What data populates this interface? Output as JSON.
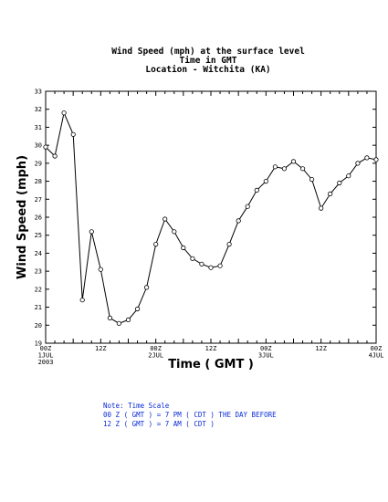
{
  "chart_data": {
    "type": "line",
    "title": [
      "Wind Speed (mph) at the surface level",
      "Time in GMT",
      "Location - Witchita (KA)"
    ],
    "xlabel": "Time ( GMT )",
    "ylabel": "Wind Speed (mph)",
    "ylim": [
      19,
      33
    ],
    "yticks": [
      "19",
      "20",
      "21",
      "22",
      "23",
      "24",
      "25",
      "26",
      "27",
      "28",
      "29",
      "30",
      "31",
      "32",
      "33"
    ],
    "x_range_hours": [
      0,
      72
    ],
    "xticks": [
      {
        "hour": 0,
        "lines": [
          "00Z",
          "1JUL",
          "2003"
        ]
      },
      {
        "hour": 12,
        "lines": [
          "12Z"
        ]
      },
      {
        "hour": 24,
        "lines": [
          "00Z",
          "2JUL"
        ]
      },
      {
        "hour": 36,
        "lines": [
          "12Z"
        ]
      },
      {
        "hour": 48,
        "lines": [
          "00Z",
          "3JUL"
        ]
      },
      {
        "hour": 60,
        "lines": [
          "12Z"
        ]
      },
      {
        "hour": 72,
        "lines": [
          "00Z",
          "4JUL"
        ]
      }
    ],
    "grid": false,
    "marker": "open-circle",
    "series": [
      {
        "hours": [
          0,
          2,
          4,
          6,
          8,
          10,
          12,
          14,
          16,
          18,
          20,
          22,
          24,
          26,
          28,
          30,
          32,
          34,
          36,
          38,
          40,
          42,
          44,
          46,
          48,
          50,
          52,
          54,
          56,
          58,
          60,
          62,
          64,
          66,
          68,
          70,
          72
        ],
        "values": [
          29.9,
          29.4,
          31.8,
          30.6,
          21.4,
          25.2,
          23.1,
          20.4,
          20.1,
          20.3,
          20.9,
          22.1,
          24.5,
          25.9,
          25.2,
          24.3,
          23.7,
          23.4,
          23.2,
          23.3,
          24.5,
          25.8,
          26.6,
          27.5,
          28.0,
          28.8,
          28.7,
          29.1,
          28.7,
          28.1,
          26.5,
          27.3,
          27.9,
          28.3,
          29.0,
          29.3,
          29.2
        ]
      }
    ]
  },
  "note": {
    "lines": [
      "Note: Time Scale",
      "00 Z ( GMT ) = 7 PM ( CDT ) THE DAY BEFORE",
      "12 Z ( GMT ) = 7 AM ( CDT )"
    ]
  },
  "colors": {
    "note": "#0a2bd6",
    "line": "#000000",
    "marker_fill": "#ffffff"
  }
}
